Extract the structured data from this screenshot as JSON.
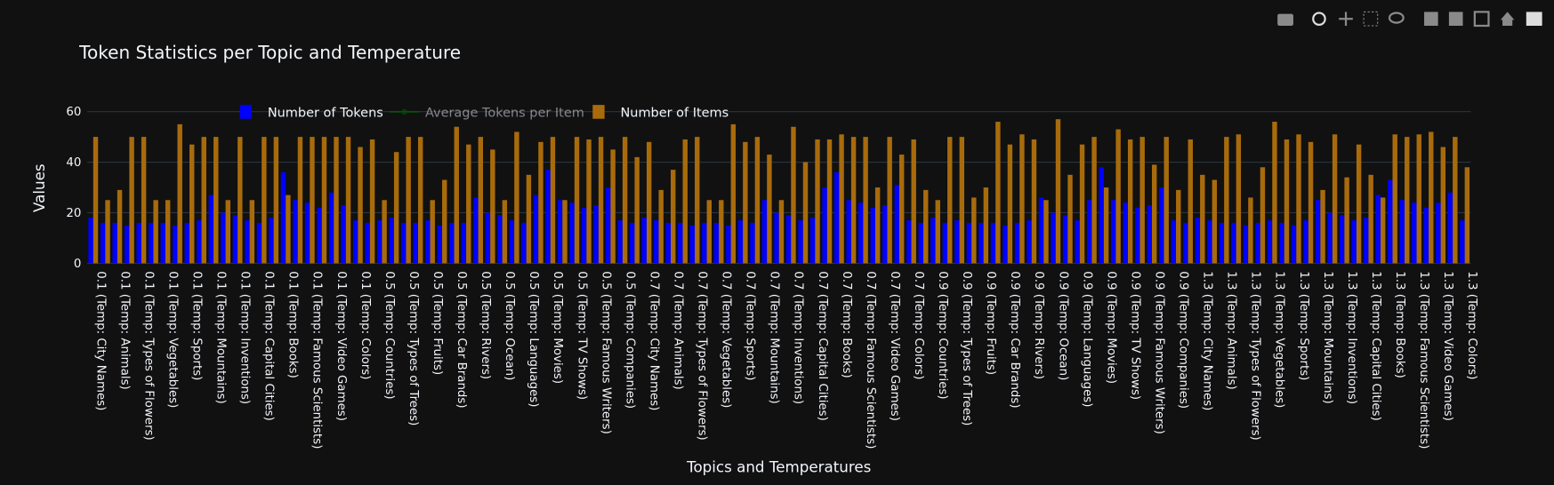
{
  "chart_data": {
    "type": "bar",
    "title": "Token Statistics per Topic and Temperature",
    "x_label": "Topics and Temperatures",
    "y_label": "Values",
    "categories": [
      "0.1 (Temp: City Names)",
      null,
      "0.1 (Temp: Animals)",
      null,
      "0.1 (Temp: Types of Flowers)",
      null,
      "0.1 (Temp: Vegetables)",
      null,
      "0.1 (Temp: Sports)",
      null,
      "0.1 (Temp: Mountains)",
      null,
      "0.1 (Temp: Inventions)",
      null,
      "0.1 (Temp: Capital Cities)",
      null,
      "0.1 (Temp: Books)",
      null,
      "0.1 (Temp: Famous Scientists)",
      null,
      "0.1 (Temp: Video Games)",
      null,
      "0.1 (Temp: Colors)",
      null,
      "0.5 (Temp: Countries)",
      null,
      "0.5 (Temp: Types of Trees)",
      null,
      "0.5 (Temp: Fruits)",
      null,
      "0.5 (Temp: Car Brands)",
      null,
      "0.5 (Temp: Rivers)",
      null,
      "0.5 (Temp: Ocean)",
      null,
      "0.5 (Temp: Languages)",
      null,
      "0.5 (Temp: Movies)",
      null,
      "0.5 (Temp: TV Shows)",
      null,
      "0.5 (Temp: Famous Writers)",
      null,
      "0.5 (Temp: Companies)",
      null,
      "0.7 (Temp: City Names)",
      null,
      "0.7 (Temp: Animals)",
      null,
      "0.7 (Temp: Types of Flowers)",
      null,
      "0.7 (Temp: Vegetables)",
      null,
      "0.7 (Temp: Sports)",
      null,
      "0.7 (Temp: Mountains)",
      null,
      "0.7 (Temp: Inventions)",
      null,
      "0.7 (Temp: Capital Cities)",
      null,
      "0.7 (Temp: Books)",
      null,
      "0.7 (Temp: Famous Scientists)",
      null,
      "0.7 (Temp: Video Games)",
      null,
      "0.7 (Temp: Colors)",
      null,
      "0.9 (Temp: Countries)",
      null,
      "0.9 (Temp: Types of Trees)",
      null,
      "0.9 (Temp: Fruits)",
      null,
      "0.9 (Temp: Car Brands)",
      null,
      "0.9 (Temp: Rivers)",
      null,
      "0.9 (Temp: Ocean)",
      null,
      "0.9 (Temp: Languages)",
      null,
      "0.9 (Temp: Movies)",
      null,
      "0.9 (Temp: TV Shows)",
      null,
      "0.9 (Temp: Famous Writers)",
      null,
      "0.9 (Temp: Companies)",
      null,
      "1.3 (Temp: City Names)",
      null,
      "1.3 (Temp: Animals)",
      null,
      "1.3 (Temp: Types of Flowers)",
      null,
      "1.3 (Temp: Vegetables)",
      null,
      "1.3 (Temp: Sports)",
      null,
      "1.3 (Temp: Mountains)",
      null,
      "1.3 (Temp: Inventions)",
      null,
      "1.3 (Temp: Capital Cities)",
      null,
      "1.3 (Temp: Books)",
      null,
      "1.3 (Temp: Famous Scientists)",
      null,
      "1.3 (Temp: Video Games)",
      null,
      "1.3 (Temp: Colors)"
    ],
    "series": [
      {
        "name": "Number of Tokens",
        "color": "#0000ff",
        "values": [
          18,
          16,
          16,
          15,
          16,
          16,
          16,
          15,
          16,
          17,
          27,
          20,
          19,
          17,
          16,
          18,
          36,
          25,
          24,
          22,
          28,
          23,
          17,
          16,
          17,
          18,
          16,
          16,
          17,
          15,
          16,
          16,
          26,
          20,
          19,
          17,
          16,
          27,
          37,
          25,
          24,
          22,
          23,
          30,
          17,
          16,
          18,
          17,
          16,
          16,
          15,
          16,
          16,
          15,
          17,
          16,
          25,
          20,
          19,
          17,
          18,
          30,
          36,
          25,
          24,
          22,
          23,
          31,
          17,
          16,
          18,
          16,
          17,
          16,
          16,
          16,
          15,
          16,
          17,
          26,
          20,
          19,
          17,
          25,
          38,
          25,
          24,
          22,
          23,
          30,
          17,
          16,
          18,
          17,
          16,
          16,
          15,
          16,
          17,
          16,
          15,
          17,
          25,
          20,
          19,
          17,
          18,
          27,
          33,
          25,
          24,
          22,
          24,
          28,
          17
        ]
      },
      {
        "name": "Average Tokens per Item",
        "color": "#006400",
        "visible": "legendonly"
      },
      {
        "name": "Number of Items",
        "color": "#a86b0c",
        "values": [
          50,
          25,
          29,
          50,
          50,
          25,
          25,
          55,
          47,
          50,
          50,
          25,
          50,
          25,
          50,
          50,
          27,
          50,
          50,
          50,
          50,
          50,
          46,
          49,
          25,
          44,
          50,
          50,
          25,
          33,
          54,
          47,
          50,
          45,
          25,
          52,
          35,
          48,
          50,
          25,
          50,
          49,
          50,
          45,
          50,
          42,
          48,
          29,
          37,
          49,
          50,
          25,
          25,
          55,
          48,
          50,
          43,
          25,
          54,
          40,
          49,
          49,
          51,
          50,
          50,
          30,
          50,
          43,
          49,
          29,
          25,
          50,
          50,
          26,
          30,
          56,
          47,
          51,
          49,
          25,
          57,
          35,
          47,
          50,
          30,
          53,
          49,
          50,
          39,
          50,
          29,
          49,
          35,
          33,
          50,
          51,
          26,
          38,
          56,
          49,
          51,
          48,
          29,
          51,
          34,
          47,
          35,
          26,
          51,
          50,
          51,
          52,
          46,
          50,
          38
        ]
      }
    ],
    "ylim": [
      0,
      65
    ],
    "yticks": [
      0,
      20,
      40,
      60
    ],
    "grid": true
  }
}
